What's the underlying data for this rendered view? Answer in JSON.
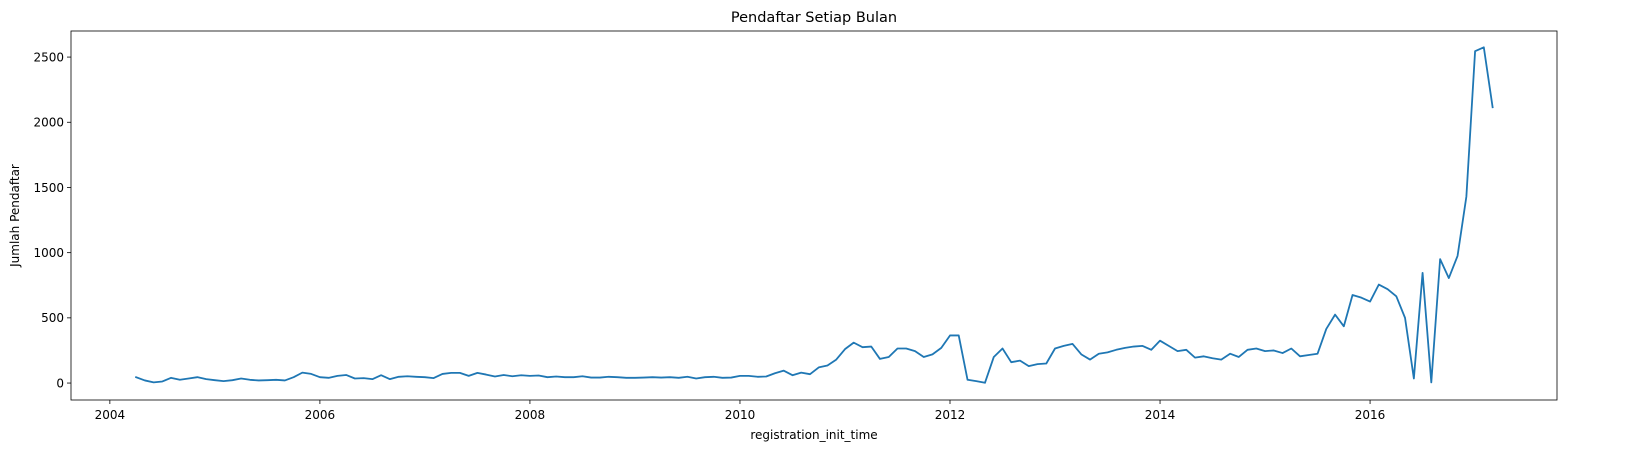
{
  "chart_data": {
    "type": "line",
    "title": "Pendaftar Setiap Bulan",
    "xlabel": "registration_init_time",
    "ylabel": "Jumlah Pendaftar",
    "xlim": [
      2003.63,
      2017.78
    ],
    "ylim": [
      -130,
      2700
    ],
    "x_ticks": [
      2004,
      2006,
      2008,
      2010,
      2012,
      2014,
      2016
    ],
    "x_tick_labels": [
      "2004",
      "2006",
      "2008",
      "2010",
      "2012",
      "2014",
      "2016"
    ],
    "y_ticks": [
      0,
      500,
      1000,
      1500,
      2000,
      2500
    ],
    "y_tick_labels": [
      "0",
      "500",
      "1000",
      "1500",
      "2000",
      "2500"
    ],
    "grid": false,
    "color": "#1f77b4",
    "series": [
      {
        "x": [
          2004.25,
          2004.333,
          2004.417,
          2004.5,
          2004.583,
          2004.667,
          2004.75,
          2004.833,
          2004.917,
          2005.0,
          2005.083,
          2005.167,
          2005.25,
          2005.333,
          2005.417,
          2005.5,
          2005.583,
          2005.667,
          2005.75,
          2005.833,
          2005.917,
          2006.0,
          2006.083,
          2006.167,
          2006.25,
          2006.333,
          2006.417,
          2006.5,
          2006.583,
          2006.667,
          2006.75,
          2006.833,
          2006.917,
          2007.0,
          2007.083,
          2007.167,
          2007.25,
          2007.333,
          2007.417,
          2007.5,
          2007.583,
          2007.667,
          2007.75,
          2007.833,
          2007.917,
          2008.0,
          2008.083,
          2008.167,
          2008.25,
          2008.333,
          2008.417,
          2008.5,
          2008.583,
          2008.667,
          2008.75,
          2008.833,
          2008.917,
          2009.0,
          2009.083,
          2009.167,
          2009.25,
          2009.333,
          2009.417,
          2009.5,
          2009.583,
          2009.667,
          2009.75,
          2009.833,
          2009.917,
          2010.0,
          2010.083,
          2010.167,
          2010.25,
          2010.333,
          2010.417,
          2010.5,
          2010.583,
          2010.667,
          2010.75,
          2010.833,
          2010.917,
          2011.0,
          2011.083,
          2011.167,
          2011.25,
          2011.333,
          2011.417,
          2011.5,
          2011.583,
          2011.667,
          2011.75,
          2011.833,
          2011.917,
          2012.0,
          2012.083,
          2012.167,
          2012.25,
          2012.333,
          2012.417,
          2012.5,
          2012.583,
          2012.667,
          2012.75,
          2012.833,
          2012.917,
          2013.0,
          2013.083,
          2013.167,
          2013.25,
          2013.333,
          2013.417,
          2013.5,
          2013.583,
          2013.667,
          2013.75,
          2013.833,
          2013.917,
          2014.0,
          2014.083,
          2014.167,
          2014.25,
          2014.333,
          2014.417,
          2014.5,
          2014.583,
          2014.667,
          2014.75,
          2014.833,
          2014.917,
          2015.0,
          2015.083,
          2015.167,
          2015.25,
          2015.333,
          2015.417,
          2015.5,
          2015.583,
          2015.667,
          2015.75,
          2015.833,
          2015.917,
          2016.0,
          2016.083,
          2016.167,
          2016.25,
          2016.333,
          2016.417,
          2016.5,
          2016.583,
          2016.667,
          2016.75,
          2016.833,
          2016.917,
          2017.0,
          2017.083,
          2017.167
        ],
        "y": [
          45,
          20,
          5,
          12,
          40,
          25,
          35,
          45,
          30,
          22,
          15,
          22,
          35,
          25,
          20,
          22,
          25,
          20,
          45,
          80,
          70,
          45,
          40,
          55,
          62,
          35,
          38,
          30,
          60,
          30,
          48,
          52,
          48,
          45,
          38,
          70,
          78,
          78,
          55,
          78,
          65,
          50,
          62,
          52,
          60,
          55,
          58,
          45,
          50,
          45,
          45,
          52,
          42,
          42,
          48,
          45,
          40,
          40,
          42,
          45,
          42,
          45,
          40,
          48,
          35,
          45,
          48,
          40,
          42,
          55,
          55,
          48,
          50,
          75,
          95,
          60,
          80,
          68,
          120,
          135,
          180,
          260,
          310,
          275,
          280,
          185,
          200,
          265,
          265,
          245,
          200,
          220,
          270,
          365,
          365,
          25,
          15,
          2,
          200,
          265,
          160,
          172,
          130,
          145,
          150,
          265,
          285,
          300,
          220,
          180,
          225,
          235,
          255,
          270,
          280,
          285,
          255,
          325,
          285,
          245,
          255,
          195,
          205,
          190,
          180,
          225,
          200,
          255,
          265,
          245,
          250,
          230,
          265,
          205,
          215,
          225,
          415,
          525,
          435,
          675,
          655,
          625,
          755,
          720,
          665,
          500,
          35,
          845,
          5,
          950,
          805,
          975,
          1430,
          2545,
          2575,
          2115
        ]
      }
    ]
  }
}
